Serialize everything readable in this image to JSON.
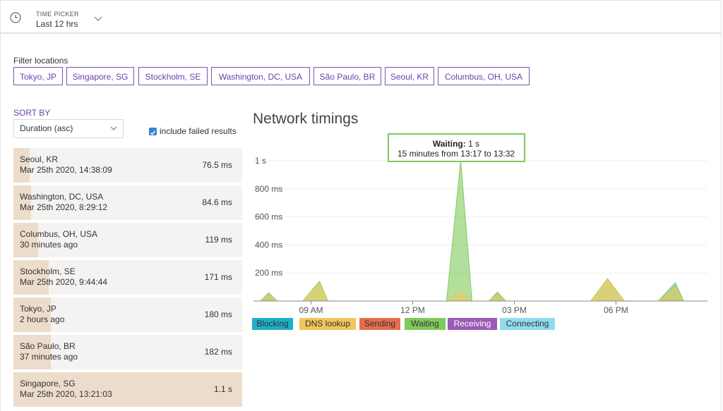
{
  "time_picker": {
    "label": "TIME PICKER",
    "value": "Last 12 hrs"
  },
  "filters": {
    "title": "Filter locations",
    "locations": [
      "Tokyo, JP",
      "Singapore, SG",
      "Stockholm, SE",
      "Washington, DC, USA",
      "São Paulo, BR",
      "Seoul, KR",
      "Columbus, OH, USA"
    ]
  },
  "sort": {
    "title": "SORT BY",
    "selected": "Duration (asc)",
    "include_failed_label": "include failed results",
    "include_failed_checked": true
  },
  "results": [
    {
      "location": "Seoul, KR",
      "time": "Mar 25th 2020, 14:38:09",
      "duration": "76.5 ms",
      "fill": 0.07
    },
    {
      "location": "Washington, DC, USA",
      "time": "Mar 25th 2020, 8:29:12",
      "duration": "84.6 ms",
      "fill": 0.077
    },
    {
      "location": "Columbus, OH, USA",
      "time": "30 minutes ago",
      "duration": "119 ms",
      "fill": 0.108
    },
    {
      "location": "Stockholm, SE",
      "time": "Mar 25th 2020, 9:44:44",
      "duration": "171 ms",
      "fill": 0.155
    },
    {
      "location": "Tokyo, JP",
      "time": "2 hours ago",
      "duration": "180 ms",
      "fill": 0.164
    },
    {
      "location": "São Paulo, BR",
      "time": "37 minutes ago",
      "duration": "182 ms",
      "fill": 0.165
    },
    {
      "location": "Singapore, SG",
      "time": "Mar 25th 2020, 13:21:03",
      "duration": "1.1 s",
      "fill": 1.0
    }
  ],
  "chart": {
    "title": "Network timings",
    "tooltip": {
      "bold": "Waiting:",
      "value": "1 s",
      "line2": "15 minutes from 13:17 to 13:32"
    },
    "legend": [
      {
        "name": "Blocking",
        "color": "#1eafc6",
        "light": false
      },
      {
        "name": "DNS lookup",
        "color": "#f1c65c",
        "light": false
      },
      {
        "name": "Sending",
        "color": "#e86c4f",
        "light": false
      },
      {
        "name": "Waiting",
        "color": "#80c95c",
        "light": false
      },
      {
        "name": "Receiving",
        "color": "#9a5ab6",
        "light": true
      },
      {
        "name": "Connecting",
        "color": "#8fdcf0",
        "light": false
      }
    ]
  },
  "chart_data": {
    "type": "area",
    "title": "Network timings",
    "x_ticks": [
      "09 AM",
      "12 PM",
      "03 PM",
      "06 PM"
    ],
    "y_ticks": [
      "200 ms",
      "400 ms",
      "600 ms",
      "800 ms",
      "1 s"
    ],
    "ylim": [
      0,
      1000
    ],
    "unit": "ms",
    "grid": true,
    "series": [
      {
        "name": "DNS lookup",
        "color": "#f1c65c",
        "points": [
          [
            "07:30",
            0
          ],
          [
            "07:45",
            50
          ],
          [
            "08:00",
            0
          ],
          [
            "08:45",
            0
          ],
          [
            "09:15",
            130
          ],
          [
            "09:30",
            0
          ],
          [
            "13:00",
            0
          ],
          [
            "13:25",
            65
          ],
          [
            "13:45",
            0
          ],
          [
            "14:15",
            0
          ],
          [
            "14:30",
            50
          ],
          [
            "14:45",
            0
          ],
          [
            "17:15",
            0
          ],
          [
            "17:45",
            155
          ],
          [
            "18:15",
            0
          ],
          [
            "19:15",
            0
          ],
          [
            "19:45",
            100
          ],
          [
            "20:00",
            0
          ]
        ]
      },
      {
        "name": "Waiting",
        "color": "#80c95c",
        "points": [
          [
            "07:30",
            0
          ],
          [
            "07:45",
            55
          ],
          [
            "08:00",
            0
          ],
          [
            "08:45",
            0
          ],
          [
            "09:15",
            140
          ],
          [
            "09:30",
            0
          ],
          [
            "13:00",
            0
          ],
          [
            "13:25",
            1000
          ],
          [
            "13:45",
            0
          ],
          [
            "14:15",
            0
          ],
          [
            "14:30",
            60
          ],
          [
            "14:45",
            0
          ],
          [
            "17:15",
            0
          ],
          [
            "17:45",
            160
          ],
          [
            "18:15",
            0
          ],
          [
            "19:15",
            0
          ],
          [
            "19:45",
            120
          ],
          [
            "20:00",
            0
          ]
        ]
      },
      {
        "name": "Connecting",
        "color": "#8fdcf0",
        "points": [
          [
            "07:30",
            0
          ],
          [
            "07:45",
            60
          ],
          [
            "08:00",
            0
          ],
          [
            "14:15",
            0
          ],
          [
            "14:30",
            65
          ],
          [
            "14:45",
            0
          ],
          [
            "19:15",
            0
          ],
          [
            "19:45",
            135
          ],
          [
            "20:00",
            0
          ]
        ]
      }
    ]
  }
}
